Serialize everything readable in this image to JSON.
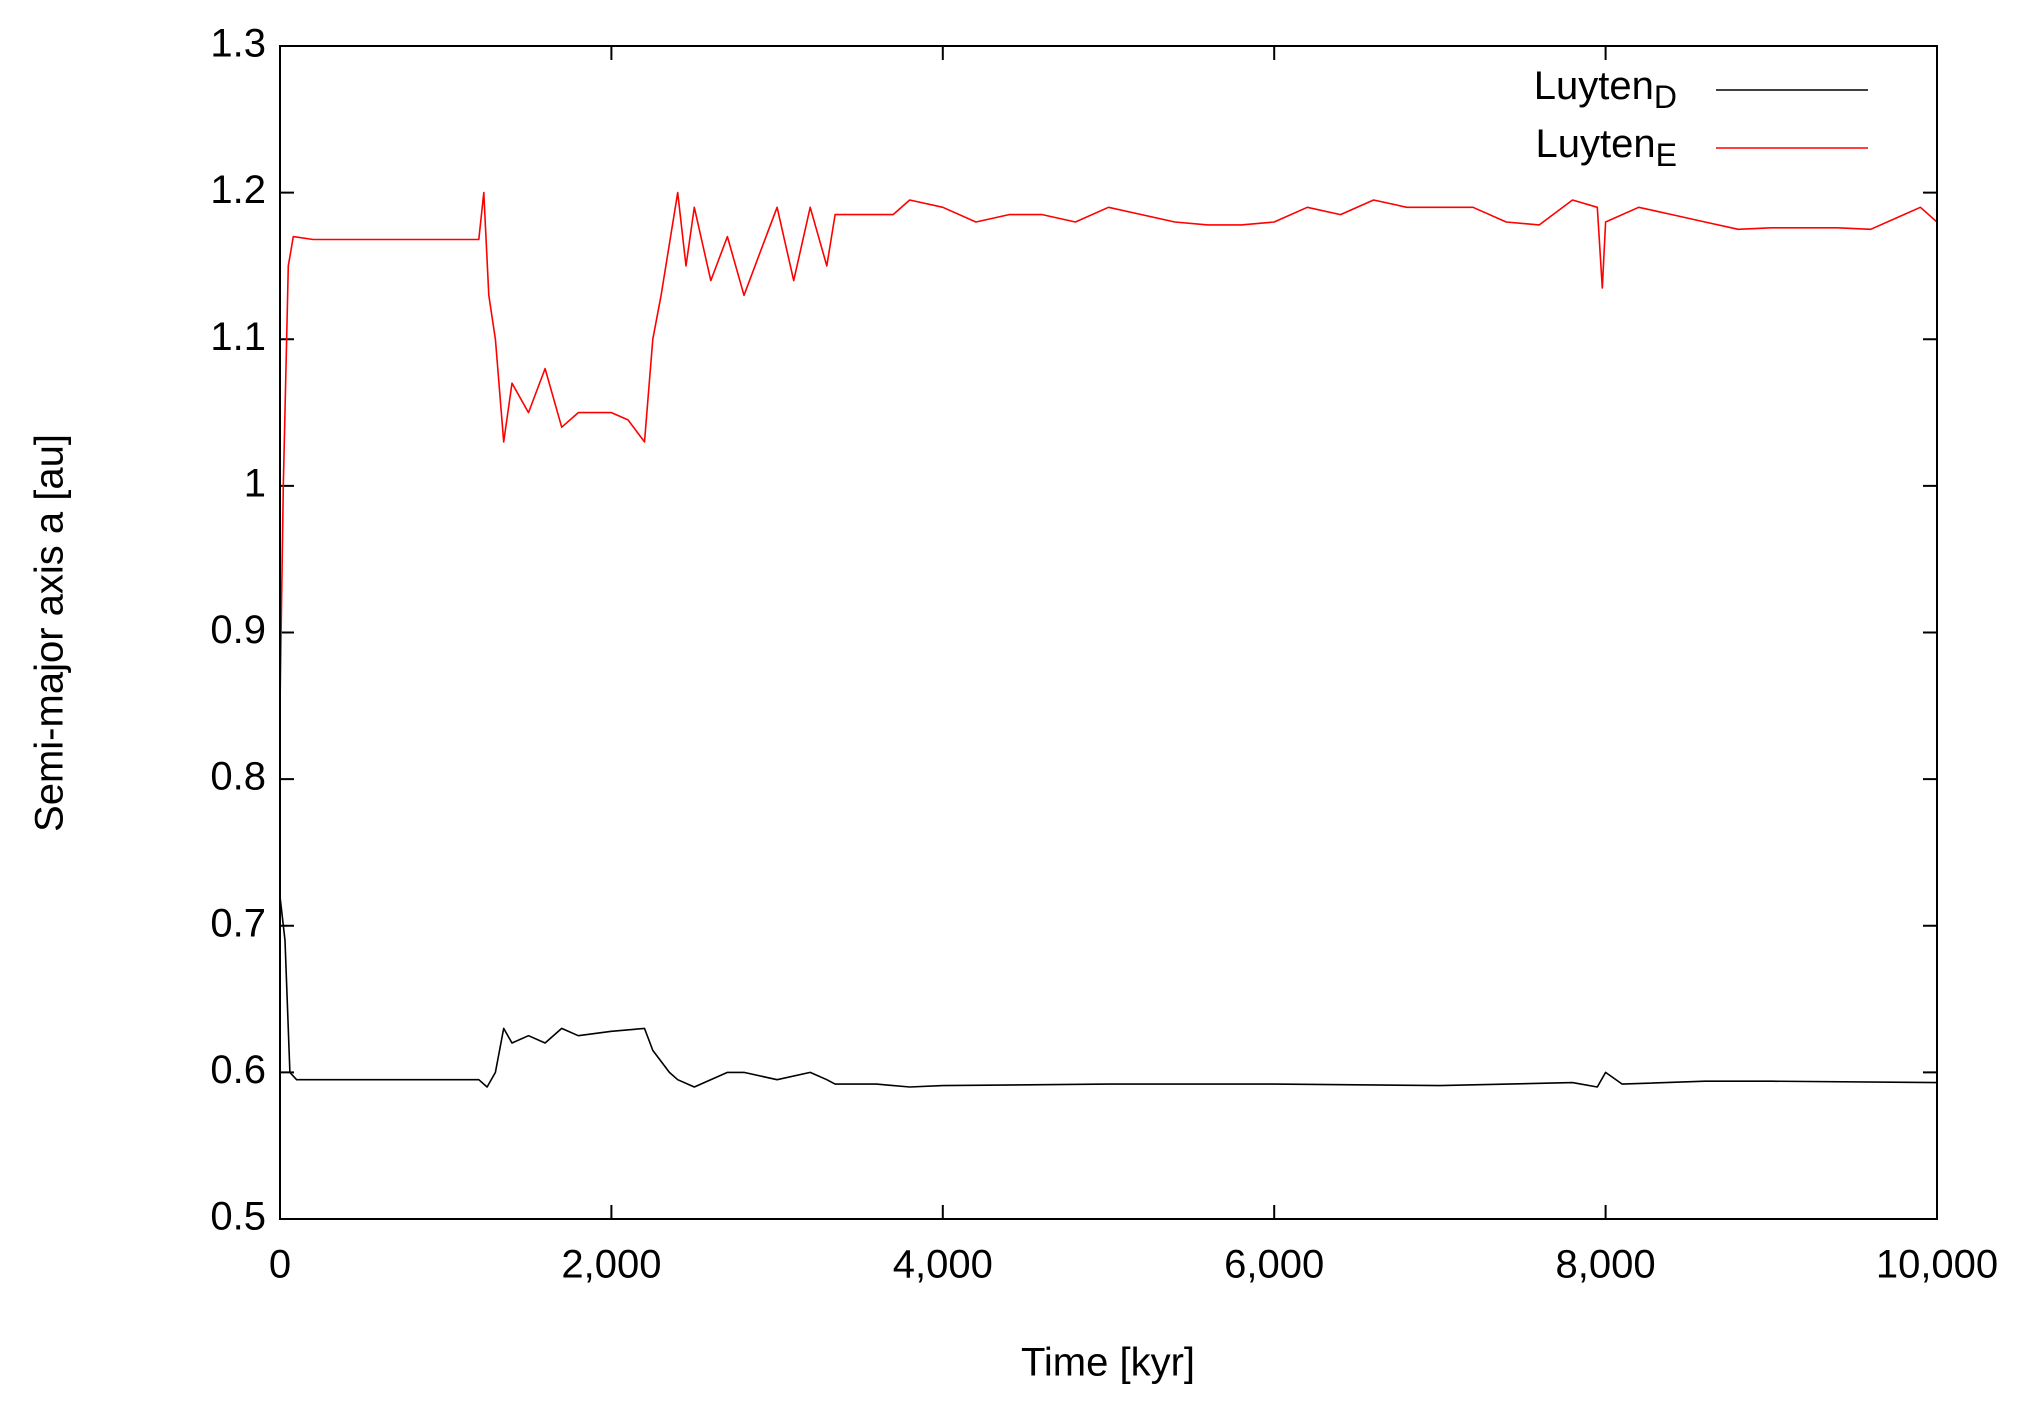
{
  "chart_data": {
    "type": "line",
    "xlabel": "Time [kyr]",
    "ylabel": "Semi-major axis a [au]",
    "xlim": [
      0,
      10000
    ],
    "ylim": [
      0.5,
      1.3
    ],
    "xticks": [
      0,
      {
        "value": 2000,
        "label": "2,000"
      },
      {
        "value": 4000,
        "label": "4,000"
      },
      {
        "value": 6000,
        "label": "6,000"
      },
      {
        "value": 8000,
        "label": "8,000"
      },
      {
        "value": 10000,
        "label": "10,000"
      }
    ],
    "yticks": [
      0.5,
      0.6,
      0.7,
      0.8,
      0.9,
      1,
      1.1,
      1.2,
      1.3
    ],
    "legend": "top-right",
    "series": [
      {
        "name": "Luyten",
        "subscript": "D",
        "color": "#000000",
        "x": [
          0,
          30,
          60,
          100,
          1200,
          1250,
          1300,
          1350,
          1400,
          1500,
          1600,
          1700,
          1800,
          2000,
          2200,
          2250,
          2350,
          2400,
          2500,
          2700,
          2800,
          3000,
          3200,
          3300,
          3350,
          3600,
          3800,
          4000,
          5000,
          6000,
          7000,
          7800,
          7950,
          8000,
          8100,
          8600,
          9000,
          10000
        ],
        "values": [
          0.72,
          0.69,
          0.6,
          0.595,
          0.595,
          0.59,
          0.6,
          0.63,
          0.62,
          0.625,
          0.62,
          0.63,
          0.625,
          0.628,
          0.63,
          0.615,
          0.6,
          0.595,
          0.59,
          0.6,
          0.6,
          0.595,
          0.6,
          0.595,
          0.592,
          0.592,
          0.59,
          0.591,
          0.592,
          0.592,
          0.591,
          0.593,
          0.59,
          0.6,
          0.592,
          0.594,
          0.594,
          0.593
        ]
      },
      {
        "name": "Luyten",
        "subscript": "E",
        "color": "#ff0000",
        "x": [
          0,
          20,
          50,
          80,
          200,
          1200,
          1230,
          1260,
          1300,
          1350,
          1400,
          1500,
          1600,
          1700,
          1800,
          2000,
          2100,
          2200,
          2250,
          2300,
          2400,
          2450,
          2500,
          2600,
          2700,
          2800,
          2900,
          3000,
          3100,
          3200,
          3300,
          3350,
          3500,
          3700,
          3800,
          4000,
          4200,
          4400,
          4600,
          4800,
          5000,
          5200,
          5400,
          5600,
          5800,
          6000,
          6200,
          6400,
          6600,
          6800,
          7000,
          7200,
          7400,
          7600,
          7800,
          7950,
          7980,
          8000,
          8200,
          8400,
          8600,
          8800,
          9000,
          9200,
          9400,
          9600,
          9800,
          9900,
          10000
        ],
        "values": [
          0.85,
          1.0,
          1.15,
          1.17,
          1.168,
          1.168,
          1.2,
          1.13,
          1.1,
          1.03,
          1.07,
          1.05,
          1.08,
          1.04,
          1.05,
          1.05,
          1.045,
          1.03,
          1.1,
          1.13,
          1.2,
          1.15,
          1.19,
          1.14,
          1.17,
          1.13,
          1.16,
          1.19,
          1.14,
          1.19,
          1.15,
          1.185,
          1.185,
          1.185,
          1.195,
          1.19,
          1.18,
          1.185,
          1.185,
          1.18,
          1.19,
          1.185,
          1.18,
          1.178,
          1.178,
          1.18,
          1.19,
          1.185,
          1.195,
          1.19,
          1.19,
          1.19,
          1.18,
          1.178,
          1.195,
          1.19,
          1.135,
          1.18,
          1.19,
          1.185,
          1.18,
          1.175,
          1.176,
          1.176,
          1.176,
          1.175,
          1.185,
          1.19,
          1.18
        ]
      }
    ]
  }
}
